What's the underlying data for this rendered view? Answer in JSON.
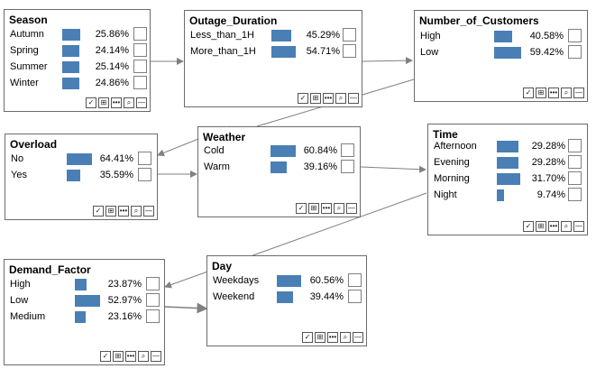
{
  "toolbar_icons": [
    "check-icon",
    "grid-icon",
    "more-icon",
    "zoom-icon",
    "minimize-icon"
  ],
  "toolbar_glyphs": [
    "✓",
    "⊞",
    "•••",
    "⌕",
    "—"
  ],
  "bar_color": "#4a7fb5",
  "nodes": [
    {
      "name": "Season",
      "states": [
        {
          "label": "Autumn",
          "pct": "25.86%",
          "value": 25.86
        },
        {
          "label": "Spring",
          "pct": "24.14%",
          "value": 24.14
        },
        {
          "label": "Summer",
          "pct": "25.14%",
          "value": 25.14
        },
        {
          "label": "Winter",
          "pct": "24.86%",
          "value": 24.86
        }
      ]
    },
    {
      "name": "Outage_Duration",
      "states": [
        {
          "label": "Less_than_1H",
          "pct": "45.29%",
          "value": 45.29
        },
        {
          "label": "More_than_1H",
          "pct": "54.71%",
          "value": 54.71
        }
      ]
    },
    {
      "name": "Number_of_Customers",
      "states": [
        {
          "label": "High",
          "pct": "40.58%",
          "value": 40.58
        },
        {
          "label": "Low",
          "pct": "59.42%",
          "value": 59.42
        }
      ]
    },
    {
      "name": "Overload",
      "states": [
        {
          "label": "No",
          "pct": "64.41%",
          "value": 64.41
        },
        {
          "label": "Yes",
          "pct": "35.59%",
          "value": 35.59
        }
      ]
    },
    {
      "name": "Weather",
      "states": [
        {
          "label": "Cold",
          "pct": "60.84%",
          "value": 60.84
        },
        {
          "label": "Warm",
          "pct": "39.16%",
          "value": 39.16
        }
      ]
    },
    {
      "name": "Time",
      "states": [
        {
          "label": "Afternoon",
          "pct": "29.28%",
          "value": 29.28
        },
        {
          "label": "Evening",
          "pct": "29.28%",
          "value": 29.28
        },
        {
          "label": "Morning",
          "pct": "31.70%",
          "value": 31.7
        },
        {
          "label": "Night",
          "pct": "9.74%",
          "value": 9.74
        }
      ]
    },
    {
      "name": "Demand_Factor",
      "states": [
        {
          "label": "High",
          "pct": "23.87%",
          "value": 23.87
        },
        {
          "label": "Low",
          "pct": "52.97%",
          "value": 52.97
        },
        {
          "label": "Medium",
          "pct": "23.16%",
          "value": 23.16
        }
      ]
    },
    {
      "name": "Day",
      "states": [
        {
          "label": "Weekdays",
          "pct": "60.56%",
          "value": 60.56
        },
        {
          "label": "Weekend",
          "pct": "39.44%",
          "value": 39.44
        }
      ]
    }
  ]
}
